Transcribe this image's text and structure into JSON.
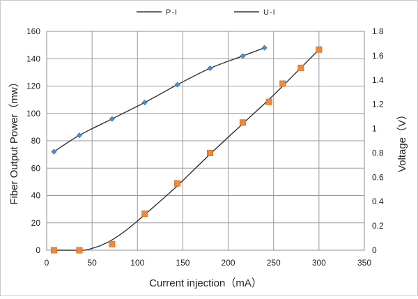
{
  "chart_data": {
    "type": "line",
    "title": "",
    "xlabel": "Current injection（mA）",
    "ylabel": "Fiber Output Power（mw）",
    "y2label": "Voltage（V）",
    "xlim": [
      0,
      350
    ],
    "ylim": [
      0,
      160
    ],
    "y2lim": [
      0,
      1.8
    ],
    "xticks": [
      "0",
      "50",
      "100",
      "150",
      "200",
      "250",
      "300",
      "350"
    ],
    "yticks": [
      "0",
      "20",
      "40",
      "60",
      "80",
      "100",
      "120",
      "140",
      "160"
    ],
    "y2ticks": [
      "0",
      "0.2",
      "0.4",
      "0.6",
      "0.8",
      "1",
      "1.2",
      "1.4",
      "1.6",
      "1.8"
    ],
    "grid": true,
    "legend": "top",
    "series": [
      {
        "name": "P-I",
        "axis": "left",
        "marker": "diamond",
        "marker_color": "#4a8fd1",
        "line_color": "#333333",
        "x": [
          8,
          36,
          72,
          108,
          144,
          180,
          216,
          240
        ],
        "y": [
          72,
          84,
          96,
          108,
          121,
          133,
          142,
          148
        ]
      },
      {
        "name": "U-I",
        "axis": "right",
        "marker": "square",
        "marker_color": "#f0883a",
        "line_color": "#333333",
        "x": [
          8,
          36,
          72,
          108,
          144,
          180,
          216,
          245,
          260,
          280,
          300
        ],
        "y": [
          0.0,
          0.0,
          0.05,
          0.3,
          0.55,
          0.8,
          1.05,
          1.22,
          1.37,
          1.5,
          1.65
        ],
        "curve_x": [
          8,
          20,
          30,
          40,
          45,
          50,
          60,
          72,
          85,
          100,
          120,
          144,
          180,
          216,
          245,
          260,
          280,
          300
        ],
        "curve_y": [
          0.0,
          0.0,
          0.0,
          0.0,
          0.005,
          0.015,
          0.04,
          0.085,
          0.15,
          0.24,
          0.37,
          0.53,
          0.79,
          1.04,
          1.24,
          1.35,
          1.5,
          1.65
        ]
      }
    ]
  }
}
